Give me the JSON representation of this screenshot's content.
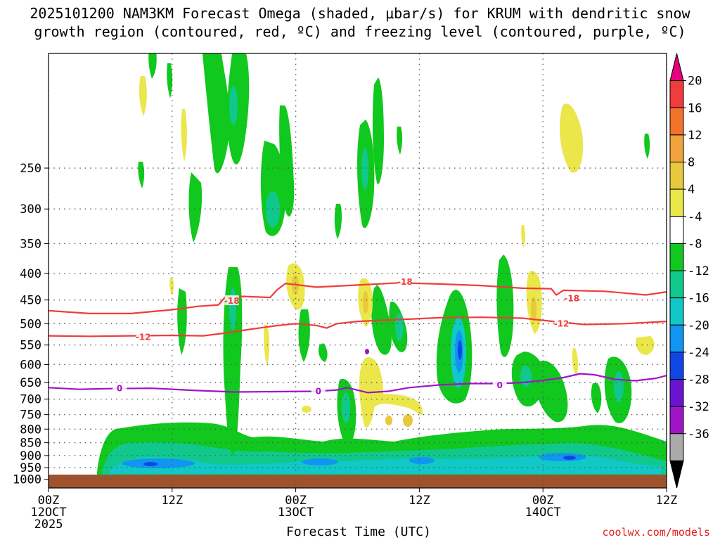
{
  "title": {
    "line1": "2025101200 NAM3KM Forecast Omega (shaded, μbar/s) for KRUM with dendritic snow",
    "line2": "growth region (contoured, red, ºC) and freezing level (contoured, purple, ºC)"
  },
  "credit": "coolwx.com/models",
  "chart_data": {
    "type": "heatmap",
    "title": "2025101200 NAM3KM Forecast Omega (shaded, μbar/s) for KRUM with dendritic snow growth region (contoured, red, ºC) and freezing level (contoured, purple, ºC)",
    "xlabel": "Forecast Time (UTC)",
    "ylabel": "",
    "x_range_hours": [
      0,
      60
    ],
    "y_range_hPa": [
      1040,
      150
    ],
    "y_scale": "log",
    "grid": true,
    "x_ticks": [
      {
        "h": 0,
        "lines": [
          "00Z",
          "12OCT",
          "2025"
        ]
      },
      {
        "h": 12,
        "lines": [
          "12Z"
        ]
      },
      {
        "h": 24,
        "lines": [
          "00Z",
          "13OCT"
        ]
      },
      {
        "h": 36,
        "lines": [
          "12Z"
        ]
      },
      {
        "h": 48,
        "lines": [
          "00Z",
          "14OCT"
        ]
      },
      {
        "h": 60,
        "lines": [
          "12Z"
        ]
      }
    ],
    "y_ticks": [
      250,
      300,
      350,
      400,
      450,
      500,
      550,
      600,
      650,
      700,
      750,
      800,
      850,
      900,
      950,
      1000
    ],
    "colorbar": {
      "labels": [
        "20",
        "16",
        "12",
        "8",
        "4",
        "-4",
        "-8",
        "-12",
        "-16",
        "-20",
        "-24",
        "-28",
        "-32",
        "-36"
      ],
      "bins": [
        {
          "color": "#e6007e"
        },
        {
          "color": "#f03c3c"
        },
        {
          "color": "#f2742a"
        },
        {
          "color": "#f0a33c"
        },
        {
          "color": "#e8c83c"
        },
        {
          "color": "#ebe64a"
        },
        {
          "color": "#ffffff"
        },
        {
          "color": "#10c81e"
        },
        {
          "color": "#10c88c"
        },
        {
          "color": "#10c8c8"
        },
        {
          "color": "#1096f0"
        },
        {
          "color": "#1046e6"
        },
        {
          "color": "#6a14d2"
        },
        {
          "color": "#a014c8"
        },
        {
          "color": "#aaaaaa"
        },
        {
          "color": "#000000"
        }
      ]
    },
    "contours": [
      {
        "name": "-18",
        "color": "#f03c3c",
        "labels": [
          {
            "h": 17.8,
            "p": 452
          },
          {
            "h": 34.6,
            "p": 415
          },
          {
            "h": 50.8,
            "p": 447
          }
        ],
        "points": [
          [
            0,
            472
          ],
          [
            4,
            478
          ],
          [
            8,
            478
          ],
          [
            12,
            470
          ],
          [
            14.5,
            463
          ],
          [
            16.5,
            460
          ],
          [
            17.2,
            443
          ],
          [
            19,
            443
          ],
          [
            21.5,
            445
          ],
          [
            22.2,
            430
          ],
          [
            23,
            418
          ],
          [
            26,
            425
          ],
          [
            30,
            421
          ],
          [
            34,
            417
          ],
          [
            38,
            419
          ],
          [
            42,
            422
          ],
          [
            46,
            427
          ],
          [
            48.8,
            428
          ],
          [
            49.3,
            440
          ],
          [
            50,
            431
          ],
          [
            54,
            433
          ],
          [
            58,
            440
          ],
          [
            60,
            434
          ]
        ]
      },
      {
        "name": "-12",
        "color": "#f03c3c",
        "labels": [
          {
            "h": 9.2,
            "p": 531
          },
          {
            "h": 49.8,
            "p": 500
          }
        ],
        "points": [
          [
            0,
            528
          ],
          [
            4,
            529
          ],
          [
            8,
            528
          ],
          [
            12,
            527
          ],
          [
            15,
            528
          ],
          [
            17,
            522
          ],
          [
            19.5,
            513
          ],
          [
            22,
            505
          ],
          [
            24,
            500
          ],
          [
            26,
            504
          ],
          [
            27,
            510
          ],
          [
            28,
            500
          ],
          [
            30,
            495
          ],
          [
            34,
            491
          ],
          [
            38,
            487
          ],
          [
            42,
            486
          ],
          [
            46,
            488
          ],
          [
            49,
            495
          ],
          [
            52,
            502
          ],
          [
            56,
            500
          ],
          [
            60,
            495
          ]
        ]
      },
      {
        "name": "0",
        "color": "#a014c8",
        "labels": [
          {
            "h": 6.9,
            "p": 668
          },
          {
            "h": 26.2,
            "p": 676
          },
          {
            "h": 43.8,
            "p": 658
          }
        ],
        "points": [
          [
            0,
            665
          ],
          [
            3,
            670
          ],
          [
            6,
            668
          ],
          [
            10,
            667
          ],
          [
            14,
            673
          ],
          [
            18,
            678
          ],
          [
            22,
            677
          ],
          [
            26,
            676
          ],
          [
            28,
            672
          ],
          [
            29,
            665
          ],
          [
            31,
            680
          ],
          [
            33,
            676
          ],
          [
            35,
            665
          ],
          [
            38,
            657
          ],
          [
            41,
            653
          ],
          [
            44,
            653
          ],
          [
            46,
            650
          ],
          [
            48,
            644
          ],
          [
            50,
            636
          ],
          [
            51.6,
            625
          ],
          [
            53,
            628
          ],
          [
            55,
            641
          ],
          [
            57,
            645
          ],
          [
            59,
            638
          ],
          [
            60,
            630
          ]
        ]
      }
    ]
  }
}
